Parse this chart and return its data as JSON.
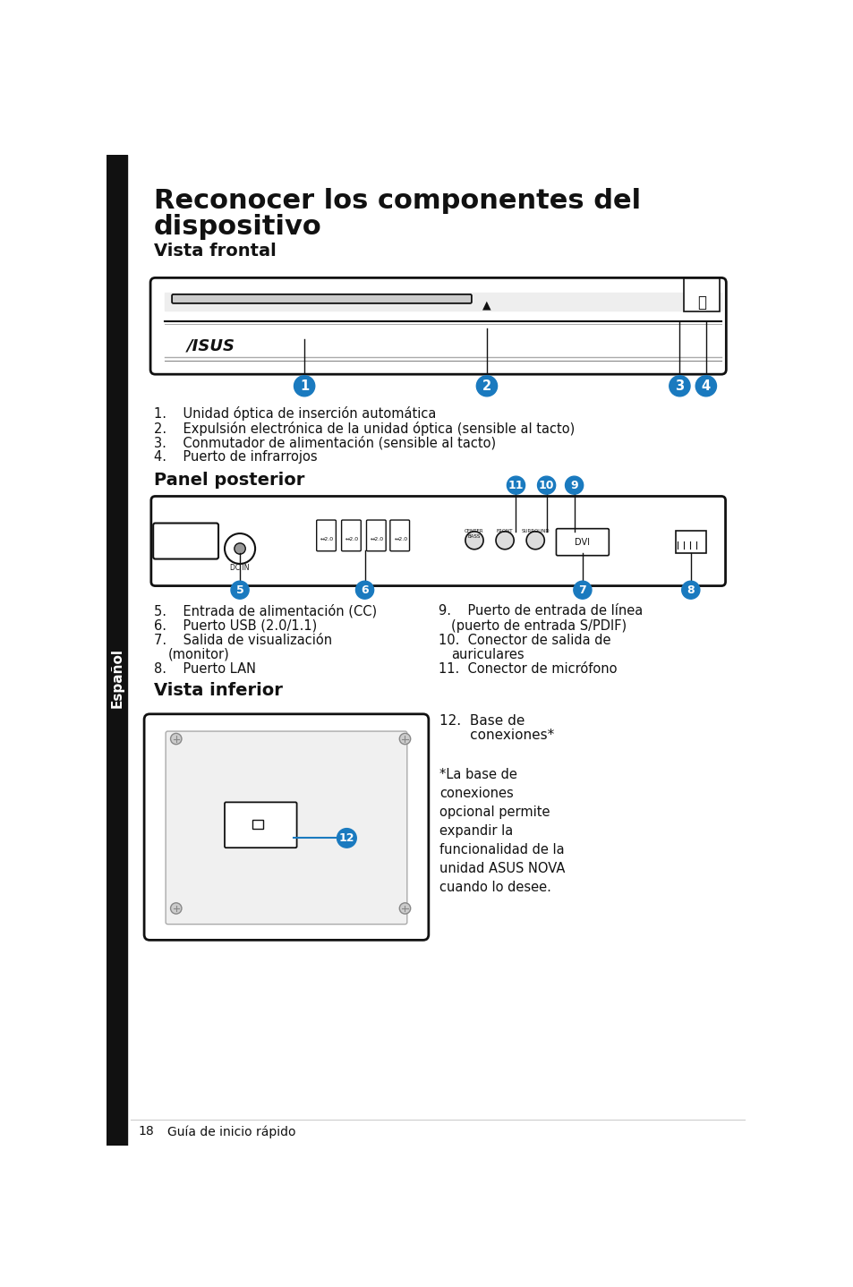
{
  "title_line1": "Reconocer los componentes del",
  "title_line2": "dispositivo",
  "section1": "Vista frontal",
  "section2": "Panel posterior",
  "section3": "Vista inferior",
  "sidebar_text": "Español",
  "footer_num": "18",
  "footer_text": "Guía de inicio rápido",
  "bg_color": "#ffffff",
  "blue": "#1a7abf",
  "dark": "#111111",
  "front_items": [
    "1.    Unidad óptica de inserción automática",
    "2.    Expulsión electrónica de la unidad óptica (sensible al tacto)",
    "3.    Conmutador de alimentación (sensible al tacto)",
    "4.    Puerto de infrarrojos"
  ],
  "rear_left_items": [
    "5.    Entrada de alimentación (CC)",
    "6.    Puerto USB (2.0/1.1)",
    "7.    Salida de visualización",
    "       (monitor)",
    "8.    Puerto LAN"
  ],
  "rear_right_items": [
    "9.    Puerto de entrada de línea",
    "       (puerto de entrada S/PDIF)",
    "10.  Conector de salida de",
    "       auriculares",
    "11.  Conector de micrófono"
  ],
  "item12_line1": "12.  Base de",
  "item12_line2": "       conexiones*",
  "footnote": "*La base de\nconexiones\nopcional permite\nexpandir la\nfuncionalidad de la\nunidad ASUS NOVA\ncuando lo desee."
}
